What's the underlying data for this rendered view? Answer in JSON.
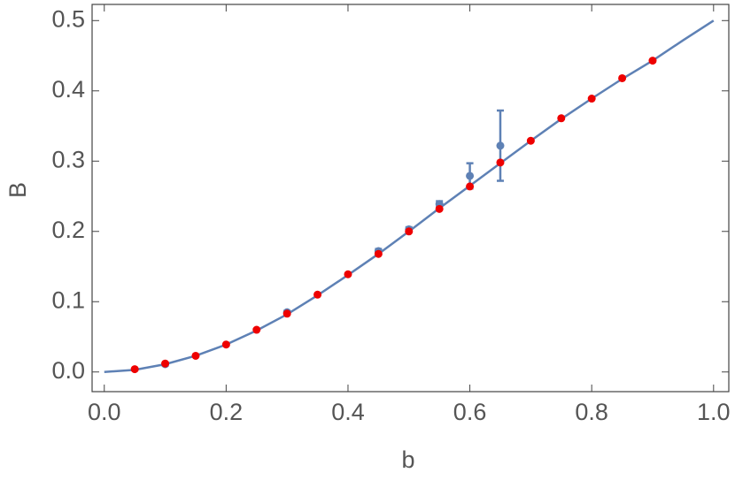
{
  "chart_data": {
    "type": "scatter",
    "xlabel": "b",
    "ylabel": "B",
    "xlim": [
      -0.02,
      1.025
    ],
    "ylim": [
      -0.028,
      0.523
    ],
    "xticks": [
      {
        "value": 0,
        "label": "0.0"
      },
      0.2,
      0.4,
      0.6,
      0.8,
      {
        "value": 1,
        "label": "1.0"
      }
    ],
    "yticks": [
      {
        "value": 0,
        "label": "0.0"
      },
      0.1,
      0.2,
      0.3,
      0.4,
      0.5
    ],
    "series": [
      {
        "mode": "line",
        "color": "#5e81b5",
        "x": [
          0,
          0.05,
          0.1,
          0.15,
          0.2,
          0.25,
          0.3,
          0.35,
          0.4,
          0.45,
          0.5,
          0.55,
          0.6,
          0.65,
          0.7,
          0.75,
          0.8,
          0.85,
          0.9,
          0.95,
          1.0
        ],
        "values": [
          0,
          0.003,
          0.011,
          0.023,
          0.039,
          0.059,
          0.082,
          0.109,
          0.138,
          0.168,
          0.2,
          0.233,
          0.265,
          0.297,
          0.329,
          0.36,
          0.389,
          0.417,
          0.443,
          0.472,
          0.5
        ]
      },
      {
        "mode": "markers",
        "color": "#5e81b5",
        "x": [
          0.1,
          0.3,
          0.45,
          0.5,
          0.55,
          0.6,
          0.65
        ],
        "values": [
          0.011,
          0.085,
          0.172,
          0.203,
          0.239,
          0.279,
          0.322
        ],
        "errors": [
          0.002,
          0.002,
          0.003,
          0.003,
          0.004,
          0.018,
          0.05
        ]
      },
      {
        "mode": "markers",
        "color": "#ee0000",
        "x": [
          0.05,
          0.1,
          0.15,
          0.2,
          0.25,
          0.3,
          0.35,
          0.4,
          0.45,
          0.5,
          0.55,
          0.6,
          0.65,
          0.7,
          0.75,
          0.8,
          0.85,
          0.9
        ],
        "values": [
          0.004,
          0.012,
          0.023,
          0.039,
          0.06,
          0.083,
          0.11,
          0.139,
          0.168,
          0.2,
          0.232,
          0.264,
          0.298,
          0.329,
          0.361,
          0.389,
          0.418,
          0.443
        ]
      }
    ]
  }
}
